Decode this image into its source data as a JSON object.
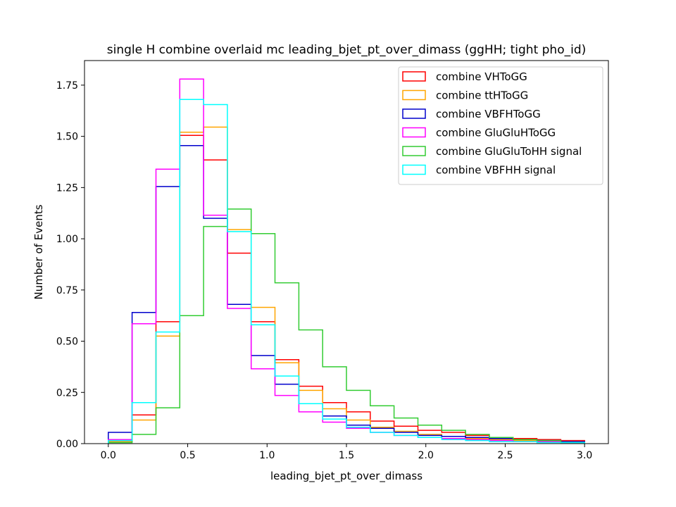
{
  "chart_data": {
    "type": "histogram",
    "title": "single H combine overlaid mc leading_bjet_pt_over_dimass (ggHH; tight pho_id)",
    "xlabel": "leading_bjet_pt_over_dimass",
    "ylabel": "Number of Events",
    "xlim": [
      -0.15,
      3.15
    ],
    "ylim": [
      0,
      1.87
    ],
    "xticks": [
      {
        "value": 0.0,
        "label": "0.0"
      },
      {
        "value": 0.5,
        "label": "0.5"
      },
      {
        "value": 1.0,
        "label": "1.0"
      },
      {
        "value": 1.5,
        "label": "1.5"
      },
      {
        "value": 2.0,
        "label": "2.0"
      },
      {
        "value": 2.5,
        "label": "2.5"
      },
      {
        "value": 3.0,
        "label": "3.0"
      }
    ],
    "yticks": [
      {
        "value": 0.0,
        "label": "0.00"
      },
      {
        "value": 0.25,
        "label": "0.25"
      },
      {
        "value": 0.5,
        "label": "0.50"
      },
      {
        "value": 0.75,
        "label": "0.75"
      },
      {
        "value": 1.0,
        "label": "1.00"
      },
      {
        "value": 1.25,
        "label": "1.25"
      },
      {
        "value": 1.5,
        "label": "1.50"
      },
      {
        "value": 1.75,
        "label": "1.75"
      }
    ],
    "grid": false,
    "legend_position": "top-right",
    "bin_edges": [
      0.0,
      0.15,
      0.3,
      0.45,
      0.6,
      0.75,
      0.9,
      1.05,
      1.2,
      1.35,
      1.5,
      1.65,
      1.8,
      1.95,
      2.1,
      2.25,
      2.4,
      2.55,
      2.7,
      2.85,
      3.0
    ],
    "series": [
      {
        "name": "combine VHToGG",
        "color": "#ff0000",
        "values": [
          0.015,
          0.14,
          0.595,
          1.505,
          1.385,
          0.93,
          0.595,
          0.41,
          0.28,
          0.2,
          0.155,
          0.11,
          0.085,
          0.065,
          0.055,
          0.04,
          0.03,
          0.025,
          0.02,
          0.015
        ]
      },
      {
        "name": "combine ttHToGG",
        "color": "#ffa500",
        "values": [
          0.01,
          0.115,
          0.525,
          1.52,
          1.545,
          1.045,
          0.665,
          0.395,
          0.26,
          0.17,
          0.115,
          0.08,
          0.06,
          0.045,
          0.035,
          0.025,
          0.02,
          0.015,
          0.01,
          0.01
        ]
      },
      {
        "name": "combine VBFHToGG",
        "color": "#0000cc",
        "values": [
          0.055,
          0.64,
          1.255,
          1.455,
          1.1,
          0.68,
          0.43,
          0.29,
          0.195,
          0.135,
          0.09,
          0.075,
          0.055,
          0.04,
          0.035,
          0.03,
          0.025,
          0.02,
          0.015,
          0.01
        ]
      },
      {
        "name": "combine GluGluHToGG",
        "color": "#ff00ff",
        "values": [
          0.02,
          0.585,
          1.34,
          1.78,
          1.115,
          0.66,
          0.365,
          0.235,
          0.155,
          0.105,
          0.075,
          0.055,
          0.04,
          0.03,
          0.025,
          0.02,
          0.015,
          0.01,
          0.01,
          0.005
        ]
      },
      {
        "name": "combine GluGluToHH signal",
        "color": "#33cc33",
        "values": [
          0.005,
          0.045,
          0.175,
          0.625,
          1.06,
          1.145,
          1.025,
          0.785,
          0.555,
          0.375,
          0.26,
          0.185,
          0.125,
          0.09,
          0.065,
          0.045,
          0.03,
          0.02,
          0.015,
          0.005
        ]
      },
      {
        "name": "combine VBFHH signal",
        "color": "#00ffff",
        "values": [
          0.015,
          0.2,
          0.545,
          1.68,
          1.655,
          1.035,
          0.58,
          0.33,
          0.195,
          0.12,
          0.08,
          0.055,
          0.04,
          0.03,
          0.02,
          0.015,
          0.01,
          0.01,
          0.005,
          0.005
        ]
      }
    ]
  }
}
